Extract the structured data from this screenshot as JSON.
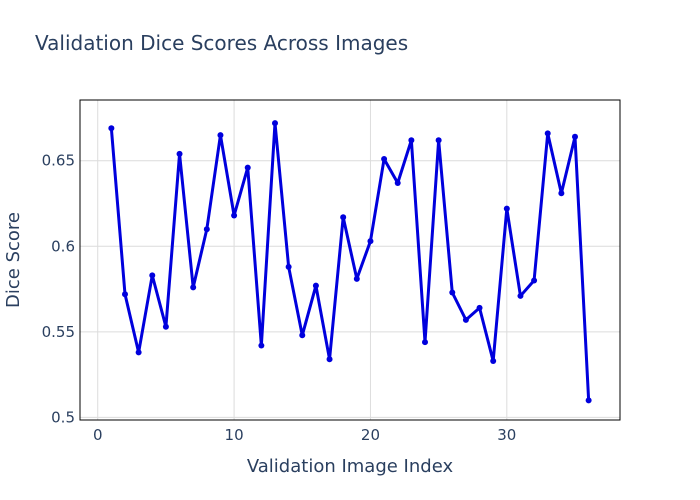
{
  "chart_data": {
    "type": "line",
    "title": "Validation Dice Scores Across Images",
    "xlabel": "Validation Image Index",
    "ylabel": "Dice Score",
    "xlim": [
      -1.3,
      38.3
    ],
    "ylim": [
      0.4985,
      0.6855
    ],
    "xticks": [
      0,
      10,
      20,
      30
    ],
    "yticks": [
      0.5,
      0.55,
      0.6,
      0.65
    ],
    "ytick_labels": [
      "0.5",
      "0.55",
      "0.6",
      "0.65"
    ],
    "grid": true,
    "line_color": "#0000dd",
    "series": [
      {
        "x": [
          1,
          2,
          3,
          4,
          5,
          6,
          7,
          8,
          9,
          10,
          11,
          12,
          13,
          14,
          15,
          16,
          17,
          18,
          19,
          20,
          21,
          22,
          23,
          24,
          25,
          26,
          27,
          28,
          29,
          30,
          31,
          32,
          33,
          34,
          35,
          36
        ],
        "y": [
          0.669,
          0.572,
          0.538,
          0.583,
          0.553,
          0.654,
          0.576,
          0.61,
          0.665,
          0.618,
          0.646,
          0.542,
          0.672,
          0.588,
          0.548,
          0.577,
          0.534,
          0.617,
          0.581,
          0.603,
          0.651,
          0.637,
          0.662,
          0.544,
          0.662,
          0.573,
          0.557,
          0.564,
          0.533,
          0.622,
          0.571,
          0.58,
          0.666,
          0.631,
          0.664,
          0.51
        ]
      }
    ]
  }
}
